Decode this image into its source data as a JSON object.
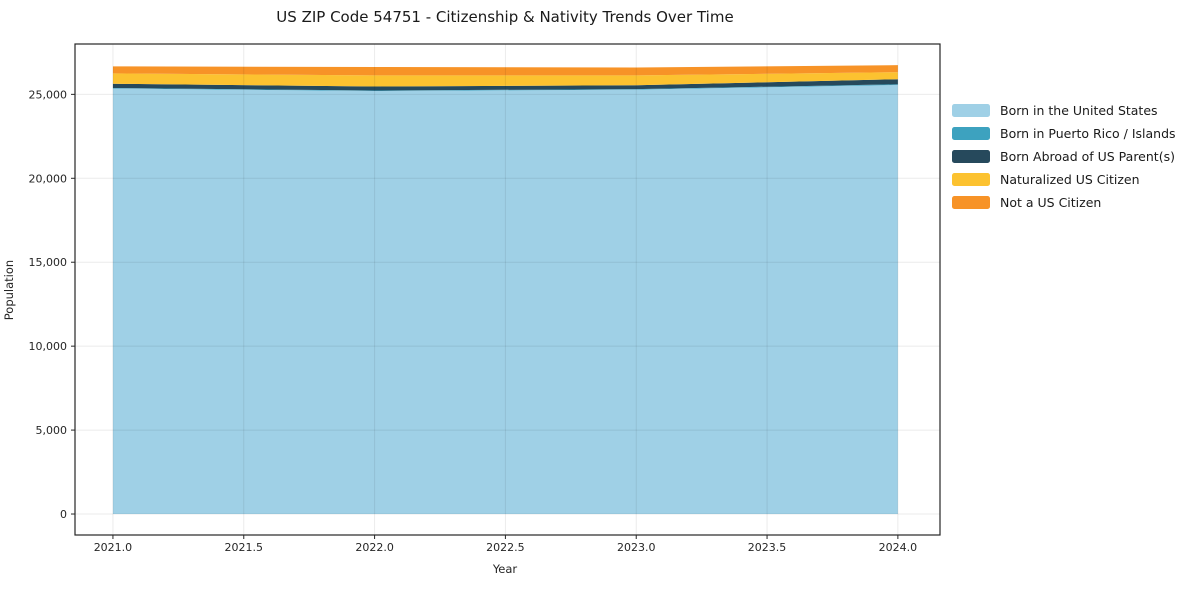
{
  "title": "US ZIP Code 54751 - Citizenship & Nativity Trends Over Time",
  "chart_data": {
    "type": "area",
    "stacked": true,
    "title": "US ZIP Code 54751 - Citizenship & Nativity Trends Over Time",
    "xlabel": "Year",
    "ylabel": "Population",
    "x": [
      2021,
      2022,
      2023,
      2024
    ],
    "series": [
      {
        "name": "Born in the United States",
        "color": "#9fd0e6",
        "values": [
          25350,
          25200,
          25280,
          25560
        ]
      },
      {
        "name": "Born in Puerto Rico / Islands",
        "color": "#3da2bf",
        "values": [
          30,
          30,
          30,
          40
        ]
      },
      {
        "name": "Born Abroad of US Parent(s)",
        "color": "#26495c",
        "values": [
          250,
          240,
          230,
          300
        ]
      },
      {
        "name": "Naturalized US Citizen",
        "color": "#fcc230",
        "values": [
          620,
          660,
          590,
          420
        ]
      },
      {
        "name": "Not a US Citizen",
        "color": "#f79327",
        "values": [
          420,
          500,
          470,
          420
        ]
      }
    ],
    "xlim": [
      2020.855,
      2024.161
    ],
    "ylim": [
      -1250,
      28000
    ],
    "xticks": [
      2021.0,
      2021.5,
      2022.0,
      2022.5,
      2023.0,
      2023.5,
      2024.0
    ],
    "xtick_labels": [
      "2021.0",
      "2021.5",
      "2022.0",
      "2022.5",
      "2023.0",
      "2023.5",
      "2024.0"
    ],
    "yticks": [
      0,
      5000,
      10000,
      15000,
      20000,
      25000
    ],
    "ytick_labels": [
      "0",
      "5,000",
      "10,000",
      "15,000",
      "20,000",
      "25,000"
    ],
    "grid": true,
    "legend_position": "right"
  }
}
